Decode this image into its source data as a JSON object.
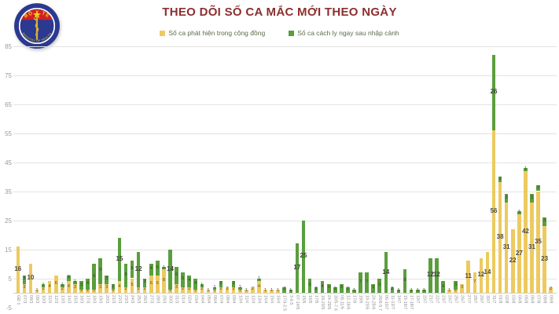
{
  "header": {
    "title": "THEO DÕI SỐ CA MẮC MỚI THEO NGÀY"
  },
  "logo": {
    "top_text": "BỘ Y TẾ",
    "bottom_text": "MINISTRY OF HEALTH"
  },
  "legend": [
    {
      "label": "Số ca phát hiện trong cộng đồng",
      "color": "#edca60"
    },
    {
      "label": "Số ca cách ly ngay sau nhập cảnh",
      "color": "#5a9e3d"
    }
  ],
  "chart_data": {
    "type": "bar",
    "stacked": true,
    "title": "THEO DÕI SỐ CA MẮC MỚI THEO NGÀY",
    "xlabel": "",
    "ylabel": "",
    "ylim": [
      -5,
      85
    ],
    "yticks": [
      85,
      75,
      65,
      55,
      45,
      35,
      25,
      15,
      5,
      -5
    ],
    "grid": true,
    "legend_position": "top",
    "categories": [
      "GĐ 1",
      "07/3",
      "08/3",
      "09/3",
      "10/3",
      "11/3",
      "12/3",
      "13/3",
      "14/3",
      "15/3",
      "16/3",
      "17/3",
      "18/3",
      "19/3",
      "20/3",
      "21/3",
      "22/3",
      "23/3",
      "24/3",
      "25/3",
      "26/3",
      "27/3",
      "28/3",
      "29/3",
      "30/3",
      "31/3",
      "01/4",
      "02/4",
      "03/4",
      "04/4",
      "05/4",
      "06/4",
      "07/4",
      "08/4",
      "09/4",
      "10/4",
      "11/4",
      "12/4",
      "13/4",
      "14/4",
      "15/4",
      "16/4",
      "17/4-2.5",
      "3-6.5",
      "07-14/5",
      "15/5",
      "16/5",
      "17/5",
      "18-23/5",
      "24-29/5",
      "30/5-7.6",
      "08-11/6",
      "12-16/6",
      "17/6",
      "18/6",
      "19-23/6",
      "24-25/6",
      "26/6-5.7",
      "06-10/7",
      "11-13/7",
      "14/7",
      "15-16/7",
      "17-18/7",
      "19/7",
      "20/7",
      "21/7",
      "22/7",
      "23/7",
      "24/7",
      "25/7",
      "26/7",
      "27/7",
      "28/7",
      "29/7",
      "30/7",
      "31/7",
      "01/8",
      "02/8",
      "03/8",
      "04/8",
      "05/8",
      "06/8",
      "07/8",
      "08/8",
      "09/8"
    ],
    "series": [
      {
        "name": "Số ca phát hiện trong cộng đồng",
        "color": "#edca60",
        "values": [
          16,
          3,
          10,
          1,
          2,
          4,
          6,
          2,
          4,
          3,
          1,
          1,
          1,
          3,
          3,
          1,
          4,
          2,
          5,
          2,
          2,
          6,
          6,
          8,
          1,
          3,
          2,
          2,
          1,
          2,
          1,
          1,
          2,
          2,
          2,
          1,
          1,
          2,
          4,
          1,
          1,
          1,
          0,
          0,
          0,
          0,
          0,
          0,
          0,
          0,
          0,
          0,
          0,
          0,
          0,
          0,
          0,
          0,
          0,
          0,
          0,
          0,
          0,
          0,
          0,
          0,
          0,
          0,
          1,
          1,
          3,
          11,
          7,
          12,
          14,
          56,
          38,
          31,
          22,
          27,
          42,
          31,
          35,
          23,
          2
        ]
      },
      {
        "name": "Số ca cách ly ngay sau nhập cảnh",
        "color": "#5a9e3d",
        "values": [
          0,
          3,
          0,
          0,
          1,
          0,
          0,
          1,
          2,
          1,
          3,
          4,
          9,
          9,
          3,
          2,
          15,
          8,
          6,
          12,
          3,
          4,
          5,
          1,
          14,
          6,
          5,
          4,
          4,
          1,
          0,
          1,
          2,
          0,
          2,
          1,
          0,
          0,
          1,
          0,
          0,
          0,
          2,
          1,
          17,
          25,
          5,
          2,
          4,
          3,
          2,
          3,
          2,
          1,
          7,
          7,
          3,
          5,
          14,
          2,
          1,
          8,
          1,
          1,
          1,
          12,
          12,
          4,
          0,
          3,
          0,
          0,
          0,
          0,
          0,
          26,
          2,
          3,
          0,
          1,
          1,
          3,
          2,
          3,
          0
        ]
      }
    ]
  }
}
